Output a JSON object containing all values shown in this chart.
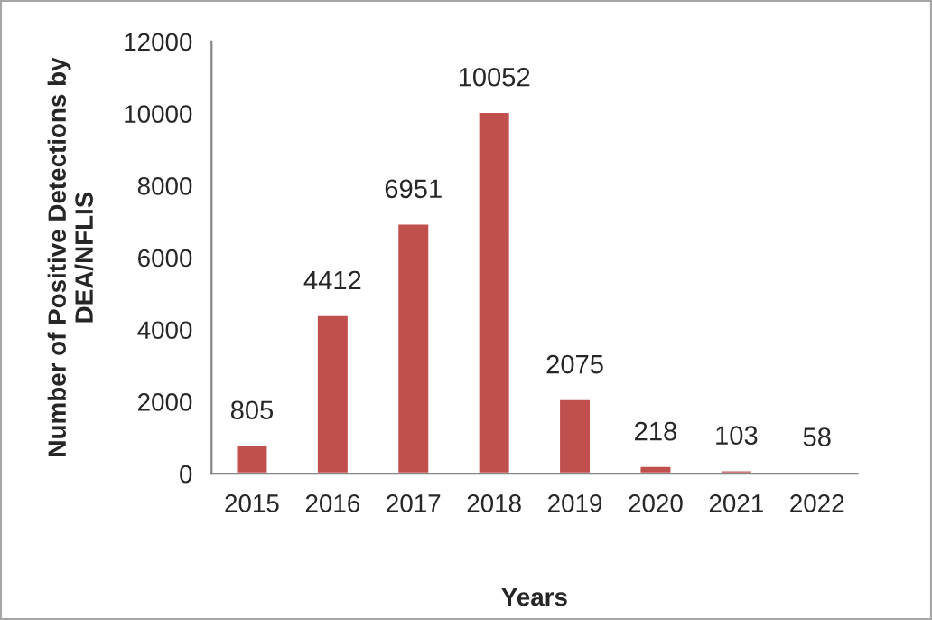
{
  "chart_data": {
    "type": "bar",
    "xlabel": "Years",
    "ylabel": "Number of Positive Detections by DEA/NFLIS",
    "categories": [
      "2015",
      "2016",
      "2017",
      "2018",
      "2019",
      "2020",
      "2021",
      "2022"
    ],
    "values": [
      805,
      4412,
      6951,
      10052,
      2075,
      218,
      103,
      58
    ],
    "color": "#c0504d",
    "ylim": [
      0,
      12000
    ],
    "yticks": [
      0,
      2000,
      4000,
      6000,
      8000,
      10000,
      12000
    ],
    "grid": false,
    "data_labels": true
  }
}
